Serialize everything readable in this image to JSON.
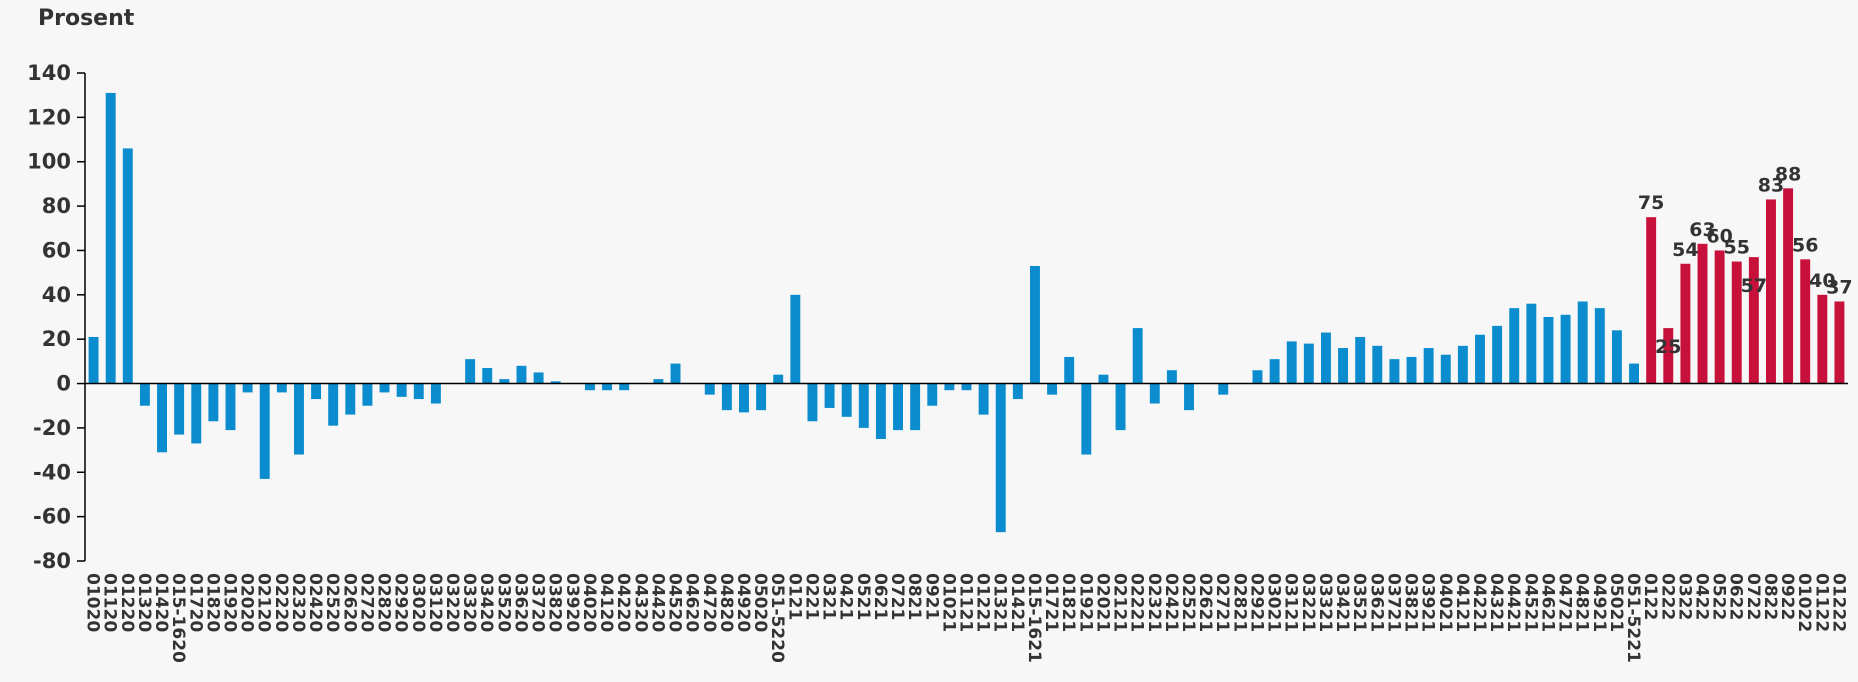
{
  "chart_data": {
    "type": "bar",
    "ylabel": "Prosent",
    "ylim": [
      -80,
      140
    ],
    "yticks": [
      140,
      120,
      100,
      80,
      60,
      40,
      20,
      0,
      -20,
      -40,
      -60,
      -80
    ],
    "colors": {
      "base": "#0a8ccf",
      "highlight": "#c8113a",
      "axis": "#000000",
      "text": "#333333"
    },
    "grid": false,
    "legend": "none",
    "values": [
      21,
      131,
      106,
      -10,
      -31,
      -23,
      -27,
      -17,
      -21,
      -4,
      -43,
      -4,
      -32,
      -7,
      -19,
      -14,
      -10,
      -4,
      -6,
      -7,
      -9,
      0,
      11,
      7,
      2,
      8,
      5,
      1,
      0,
      -3,
      -3,
      -3,
      0,
      2,
      9,
      0,
      -5,
      -12,
      -13,
      -12,
      4,
      40,
      -17,
      -11,
      -15,
      -20,
      -25,
      -21,
      -21,
      -10,
      -3,
      -3,
      -14,
      -67,
      -7,
      53,
      -5,
      12,
      -32,
      4,
      -21,
      25,
      -9,
      6,
      -12,
      0,
      -5,
      0,
      6,
      11,
      19,
      18,
      23,
      16,
      21,
      17,
      11,
      12,
      16,
      13,
      17,
      22,
      26,
      34,
      36,
      30,
      31,
      37,
      34,
      24,
      9,
      75,
      25,
      54,
      63,
      60,
      55,
      57,
      83,
      88,
      56,
      40,
      37
    ],
    "highlight_from": 91,
    "data_labels": [
      {
        "index": 91,
        "text": "75"
      },
      {
        "index": 92,
        "text": "25"
      },
      {
        "index": 93,
        "text": "54"
      },
      {
        "index": 94,
        "text": "63"
      },
      {
        "index": 95,
        "text": "60"
      },
      {
        "index": 96,
        "text": "55"
      },
      {
        "index": 97,
        "text": "57"
      },
      {
        "index": 98,
        "text": "83"
      },
      {
        "index": 99,
        "text": "88"
      },
      {
        "index": 100,
        "text": "56"
      },
      {
        "index": 101,
        "text": "40"
      },
      {
        "index": 102,
        "text": "37"
      }
    ],
    "x_tick_labels": [
      "01020",
      "01120",
      "01220",
      "01320",
      "01420",
      "015-1620",
      "01720",
      "01820",
      "01920",
      "02020",
      "02120",
      "02220",
      "02320",
      "02420",
      "02520",
      "02620",
      "02720",
      "02820",
      "02920",
      "03020",
      "03120",
      "03220",
      "03320",
      "03420",
      "03520",
      "03620",
      "03720",
      "03820",
      "03920",
      "04020",
      "04120",
      "04220",
      "04320",
      "04420",
      "04520",
      "04620",
      "04720",
      "04820",
      "04920",
      "05020",
      "051-5220",
      "0121",
      "0221",
      "0321",
      "0421",
      "0521",
      "0621",
      "0721",
      "0821",
      "0921",
      "01021",
      "01121",
      "01221",
      "01321",
      "01421",
      "015-1621",
      "01721",
      "01821",
      "01921",
      "02021",
      "02121",
      "02221",
      "02321",
      "02421",
      "02521",
      "02621",
      "02721",
      "02821",
      "02921",
      "03021",
      "03121",
      "03221",
      "03321",
      "03421",
      "03521",
      "03621",
      "03721",
      "03821",
      "03921",
      "04021",
      "04121",
      "04221",
      "04321",
      "04421",
      "04521",
      "04621",
      "04721",
      "04821",
      "04921",
      "05021",
      "051-5221",
      "0122",
      "0222",
      "0322",
      "0422",
      "0522",
      "0622",
      "0722",
      "0822",
      "0922",
      "01022",
      "01122",
      "01222"
    ]
  }
}
